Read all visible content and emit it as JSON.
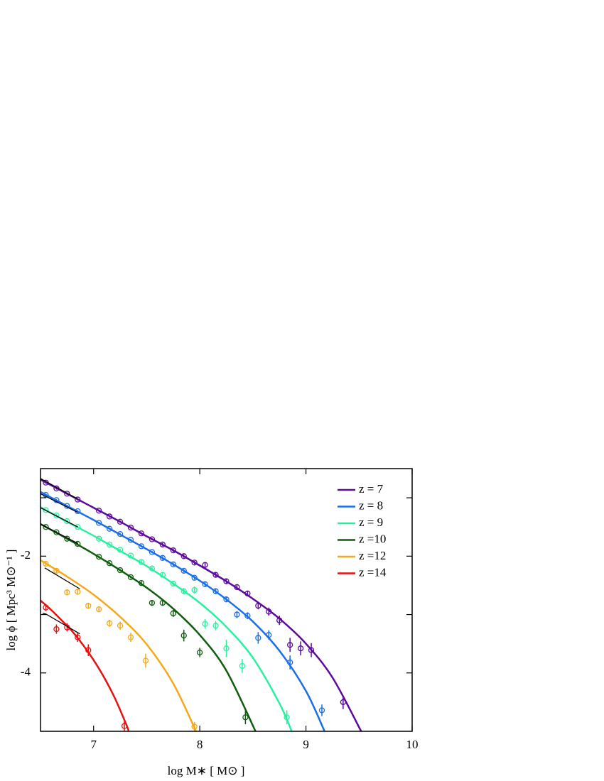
{
  "chart_data": {
    "type": "line",
    "xlabel": "log M∗ [ M⊙ ]",
    "ylabel": "log ϕ [ Mpc³ M⊙⁻¹ ]",
    "xlim": [
      6.5,
      10
    ],
    "ylim": [
      -5,
      -0.5
    ],
    "xticks": [
      7,
      8,
      9,
      10
    ],
    "yticks": [
      -4,
      -2
    ],
    "yminorticks": [
      -3,
      -1
    ],
    "legend": "upper right",
    "series": [
      {
        "name": "z = 7",
        "color": "#5c0a9c",
        "x": [
          6.55,
          6.65,
          6.75,
          6.85,
          7.05,
          7.15,
          7.25,
          7.35,
          7.45,
          7.55,
          7.65,
          7.75,
          7.85,
          7.95,
          8.05,
          8.15,
          8.25,
          8.35,
          8.45,
          8.55,
          8.65,
          8.75,
          8.85,
          8.95,
          9.05,
          9.35
        ],
        "values": [
          -0.74,
          -0.84,
          -0.93,
          -1.03,
          -1.22,
          -1.32,
          -1.41,
          -1.51,
          -1.61,
          -1.71,
          -1.8,
          -1.9,
          -2.0,
          -2.11,
          -2.15,
          -2.32,
          -2.43,
          -2.53,
          -2.64,
          -2.85,
          -2.95,
          -3.1,
          -3.52,
          -3.58,
          -3.61,
          -4.5
        ],
        "errors": [
          0.02,
          0.02,
          0.02,
          0.02,
          0.02,
          0.02,
          0.02,
          0.02,
          0.02,
          0.02,
          0.03,
          0.03,
          0.03,
          0.03,
          0.04,
          0.04,
          0.04,
          0.05,
          0.05,
          0.06,
          0.07,
          0.08,
          0.12,
          0.12,
          0.12,
          0.12
        ],
        "fit_x": [
          6.5,
          6.75,
          7.0,
          7.25,
          7.5,
          7.75,
          8.0,
          8.25,
          8.5,
          8.75,
          9.0,
          9.25,
          9.52
        ],
        "fit_values": [
          -0.69,
          -0.93,
          -1.17,
          -1.41,
          -1.66,
          -1.9,
          -2.16,
          -2.43,
          -2.73,
          -3.07,
          -3.5,
          -4.08,
          -5.0
        ]
      },
      {
        "name": "z = 8",
        "color": "#1a6ee8",
        "x": [
          6.55,
          6.65,
          6.75,
          6.85,
          7.05,
          7.15,
          7.25,
          7.35,
          7.45,
          7.55,
          7.65,
          7.75,
          7.85,
          7.95,
          8.05,
          8.15,
          8.25,
          8.35,
          8.45,
          8.55,
          8.65,
          8.85,
          9.15
        ],
        "values": [
          -0.95,
          -1.04,
          -1.14,
          -1.23,
          -1.43,
          -1.53,
          -1.62,
          -1.72,
          -1.83,
          -1.93,
          -2.03,
          -2.14,
          -2.25,
          -2.37,
          -2.48,
          -2.6,
          -2.74,
          -3.0,
          -3.02,
          -3.4,
          -3.35,
          -3.82,
          -4.64
        ],
        "errors": [
          0.02,
          0.02,
          0.02,
          0.02,
          0.02,
          0.02,
          0.02,
          0.02,
          0.02,
          0.02,
          0.03,
          0.03,
          0.03,
          0.03,
          0.04,
          0.05,
          0.05,
          0.06,
          0.06,
          0.1,
          0.08,
          0.12,
          0.1
        ],
        "fit_x": [
          6.5,
          6.75,
          7.0,
          7.25,
          7.5,
          7.75,
          8.0,
          8.25,
          8.5,
          8.75,
          9.0,
          9.18
        ],
        "fit_values": [
          -0.9,
          -1.14,
          -1.38,
          -1.63,
          -1.88,
          -2.14,
          -2.42,
          -2.74,
          -3.12,
          -3.62,
          -4.31,
          -5.02
        ]
      },
      {
        "name": "z = 9",
        "color": "#2af0a0",
        "x": [
          6.55,
          6.65,
          6.75,
          6.85,
          7.05,
          7.15,
          7.25,
          7.35,
          7.45,
          7.55,
          7.65,
          7.75,
          7.85,
          7.95,
          8.05,
          8.15,
          8.25,
          8.4,
          8.82
        ],
        "values": [
          -1.21,
          -1.3,
          -1.4,
          -1.5,
          -1.7,
          -1.8,
          -1.89,
          -1.99,
          -2.1,
          -2.21,
          -2.32,
          -2.47,
          -2.6,
          -2.58,
          -3.16,
          -3.19,
          -3.58,
          -3.88,
          -4.76
        ],
        "errors": [
          0.02,
          0.02,
          0.02,
          0.02,
          0.02,
          0.02,
          0.02,
          0.02,
          0.03,
          0.03,
          0.04,
          0.04,
          0.05,
          0.06,
          0.08,
          0.08,
          0.15,
          0.12,
          0.12
        ],
        "fit_x": [
          6.5,
          6.75,
          7.0,
          7.25,
          7.5,
          7.75,
          8.0,
          8.25,
          8.5,
          8.75,
          8.87
        ],
        "fit_values": [
          -1.16,
          -1.41,
          -1.65,
          -1.91,
          -2.17,
          -2.47,
          -2.8,
          -3.21,
          -3.74,
          -4.52,
          -5.02
        ]
      },
      {
        "name": "z =10",
        "color": "#0e5e0e",
        "x": [
          6.55,
          6.65,
          6.75,
          6.85,
          7.05,
          7.15,
          7.25,
          7.35,
          7.45,
          7.55,
          7.65,
          7.75,
          7.85,
          8.0,
          8.43
        ],
        "values": [
          -1.5,
          -1.59,
          -1.7,
          -1.79,
          -2.01,
          -2.12,
          -2.24,
          -2.36,
          -2.46,
          -2.8,
          -2.8,
          -2.98,
          -3.36,
          -3.65,
          -4.76
        ],
        "errors": [
          0.02,
          0.02,
          0.02,
          0.02,
          0.02,
          0.02,
          0.02,
          0.02,
          0.03,
          0.05,
          0.05,
          0.06,
          0.1,
          0.08,
          0.12
        ],
        "fit_x": [
          6.5,
          6.75,
          7.0,
          7.25,
          7.5,
          7.75,
          8.0,
          8.25,
          8.53
        ],
        "fit_values": [
          -1.45,
          -1.7,
          -1.96,
          -2.24,
          -2.54,
          -2.9,
          -3.35,
          -3.96,
          -5.02
        ]
      },
      {
        "name": "z =12",
        "color": "#f5a81a",
        "x": [
          6.55,
          6.65,
          6.75,
          6.85,
          6.95,
          7.05,
          7.15,
          7.25,
          7.35,
          7.49,
          7.95
        ],
        "values": [
          -2.13,
          -2.25,
          -2.62,
          -2.61,
          -2.85,
          -2.91,
          -3.15,
          -3.19,
          -3.39,
          -3.79,
          -4.92
        ],
        "errors": [
          0.03,
          0.04,
          0.05,
          0.05,
          0.05,
          0.05,
          0.06,
          0.07,
          0.08,
          0.12,
          0.08
        ],
        "fit_x": [
          6.5,
          6.75,
          7.0,
          7.25,
          7.5,
          7.75,
          7.97
        ],
        "fit_values": [
          -2.07,
          -2.35,
          -2.66,
          -3.04,
          -3.51,
          -4.18,
          -5.02
        ]
      },
      {
        "name": "z =14",
        "color": "#e81010",
        "x": [
          6.55,
          6.65,
          6.75,
          6.85,
          6.95,
          7.29
        ],
        "values": [
          -2.88,
          -3.25,
          -3.22,
          -3.39,
          -3.61,
          -4.91
        ],
        "errors": [
          0.06,
          0.08,
          0.07,
          0.08,
          0.1,
          0.08
        ],
        "fit_x": [
          6.5,
          6.6,
          6.7,
          6.8,
          6.9,
          7.0,
          7.1,
          7.2,
          7.3,
          7.33
        ],
        "fit_values": [
          -2.76,
          -2.92,
          -3.1,
          -3.29,
          -3.52,
          -3.78,
          -4.08,
          -4.43,
          -4.85,
          -4.99
        ]
      }
    ],
    "reference_lines": [
      {
        "color": "#000000",
        "x": [
          6.5,
          6.85
        ],
        "values": [
          -0.67,
          -1.02
        ]
      },
      {
        "color": "#000000",
        "x": [
          6.5,
          6.85
        ],
        "values": [
          -0.93,
          -1.25
        ]
      },
      {
        "color": "#000000",
        "x": [
          6.5,
          6.85
        ],
        "values": [
          -1.17,
          -1.5
        ]
      },
      {
        "color": "#000000",
        "x": [
          6.5,
          6.85
        ],
        "values": [
          -1.45,
          -1.78
        ]
      },
      {
        "color": "#000000",
        "x": [
          6.54,
          6.87
        ],
        "values": [
          -2.2,
          -2.56
        ]
      },
      {
        "color": "#000000",
        "x": [
          6.52,
          6.55,
          6.87
        ],
        "values": [
          -2.98,
          -2.99,
          -3.33
        ]
      }
    ]
  }
}
